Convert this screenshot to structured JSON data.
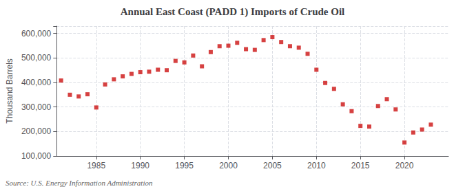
{
  "chart_data": {
    "type": "scatter",
    "title": "Annual East Coast (PADD 1) Imports of Crude Oil",
    "ylabel": "Thousand Barrels",
    "annotations": [
      "Source: U.S. Energy Information Administration"
    ],
    "color": "#cc1111",
    "marker": "square",
    "grid": true,
    "xlim": [
      1980.5,
      2025
    ],
    "xticks": [
      1985,
      1990,
      1995,
      2000,
      2005,
      2010,
      2015,
      2020
    ],
    "ylim": [
      100000,
      630000
    ],
    "yticks": [
      {
        "value": 100000,
        "label": "100,000"
      },
      {
        "value": 200000,
        "label": "200,000"
      },
      {
        "value": 300000,
        "label": "300,000"
      },
      {
        "value": 400000,
        "label": "400,000"
      },
      {
        "value": 500000,
        "label": "500,000"
      },
      {
        "value": 600000,
        "label": "600,000"
      }
    ],
    "x": [
      1981,
      1982,
      1983,
      1984,
      1985,
      1986,
      1987,
      1988,
      1989,
      1990,
      1991,
      1992,
      1993,
      1994,
      1995,
      1996,
      1997,
      1998,
      1999,
      2000,
      2001,
      2002,
      2003,
      2004,
      2005,
      2006,
      2007,
      2008,
      2009,
      2010,
      2011,
      2012,
      2013,
      2014,
      2015,
      2016,
      2017,
      2018,
      2019,
      2020,
      2021,
      2022,
      2023
    ],
    "values": [
      408000,
      350000,
      343000,
      352000,
      298000,
      392000,
      413000,
      425000,
      435000,
      442000,
      444000,
      452000,
      450000,
      488000,
      482000,
      510000,
      466000,
      524000,
      548000,
      550000,
      562000,
      536000,
      533000,
      573000,
      585000,
      565000,
      548000,
      542000,
      517000,
      452000,
      398000,
      374000,
      311000,
      283000,
      223000,
      220000,
      304000,
      332000,
      290000,
      155000,
      196000,
      208000,
      228000
    ]
  }
}
